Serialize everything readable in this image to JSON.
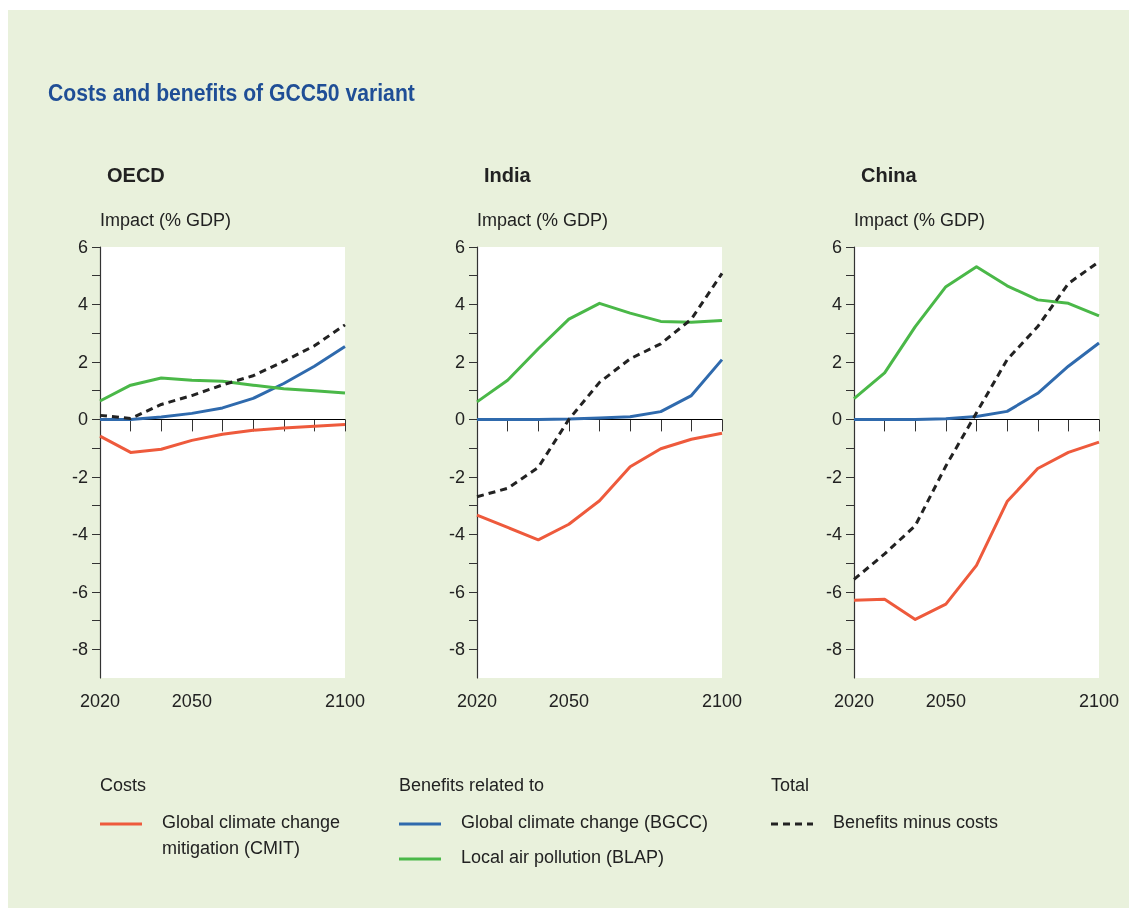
{
  "chart_data": [
    {
      "type": "line",
      "title": "OECD",
      "ylabel": "Impact (% GDP)",
      "annotations": [
        "Costs and benefits of GCC50 variant",
        "Costs",
        "Benefits related to",
        "Total"
      ],
      "legend": "bottom",
      "marker": "none",
      "x": [
        2020,
        2030,
        2040,
        2050,
        2060,
        2070,
        2080,
        2090,
        2100
      ],
      "xlim": [
        2020,
        2100
      ],
      "xticks": [
        2020,
        {
          "value": 2030,
          "label": null
        },
        {
          "value": 2040,
          "label": null
        },
        2050,
        {
          "value": 2060,
          "label": null
        },
        {
          "value": 2070,
          "label": null
        },
        {
          "value": 2080,
          "label": null
        },
        {
          "value": 2090,
          "label": null
        },
        2100
      ],
      "ylim": [
        -9,
        6
      ],
      "yticks": [
        -8,
        {
          "value": -7,
          "label": null
        },
        -6,
        {
          "value": -5,
          "label": null
        },
        -4,
        {
          "value": -3,
          "label": null
        },
        -2,
        {
          "value": -1,
          "label": null
        },
        0,
        {
          "value": 1,
          "label": null
        },
        2,
        {
          "value": 3,
          "label": null
        },
        4,
        {
          "value": 5,
          "label": null
        },
        6
      ],
      "ref_lines": [
        {
          "axis": "y",
          "value": 0,
          "color": "#000000"
        }
      ],
      "series": [
        {
          "name": "Global climate change mitigation (CMIT)",
          "color": "#ee5a3c",
          "values": [
            -0.58,
            -1.15,
            -1.04,
            -0.73,
            -0.52,
            -0.38,
            -0.3,
            -0.24,
            -0.18
          ]
        },
        {
          "name": "Global climate change (BGCC)",
          "color": "#2f6aad",
          "values": [
            0,
            0,
            0.08,
            0.21,
            0.4,
            0.73,
            1.25,
            1.85,
            2.54
          ]
        },
        {
          "name": "Local air pollution (BLAP)",
          "color": "#4ab848",
          "values": [
            0.64,
            1.19,
            1.44,
            1.36,
            1.33,
            1.19,
            1.07,
            1,
            0.92
          ]
        },
        {
          "name": "Benefits minus costs",
          "color": "#222222",
          "line_style": "dashed",
          "values": [
            0.14,
            0.03,
            0.52,
            0.83,
            1.2,
            1.52,
            2.02,
            2.56,
            3.29
          ]
        }
      ]
    },
    {
      "type": "line",
      "title": "India",
      "ylabel": "Impact (% GDP)",
      "marker": "none",
      "x": [
        2020,
        2030,
        2040,
        2050,
        2060,
        2070,
        2080,
        2090,
        2100
      ],
      "xlim": [
        2020,
        2100
      ],
      "xticks": [
        2020,
        {
          "value": 2030,
          "label": null
        },
        {
          "value": 2040,
          "label": null
        },
        2050,
        {
          "value": 2060,
          "label": null
        },
        {
          "value": 2070,
          "label": null
        },
        {
          "value": 2080,
          "label": null
        },
        {
          "value": 2090,
          "label": null
        },
        2100
      ],
      "ylim": [
        -9,
        6
      ],
      "yticks": [
        -8,
        {
          "value": -7,
          "label": null
        },
        -6,
        {
          "value": -5,
          "label": null
        },
        -4,
        {
          "value": -3,
          "label": null
        },
        -2,
        {
          "value": -1,
          "label": null
        },
        0,
        {
          "value": 1,
          "label": null
        },
        2,
        {
          "value": 3,
          "label": null
        },
        4,
        {
          "value": 5,
          "label": null
        },
        6
      ],
      "ref_lines": [
        {
          "axis": "y",
          "value": 0,
          "color": "#000000"
        }
      ],
      "series": [
        {
          "color": "#ee5a3c",
          "values": [
            -3.33,
            -3.76,
            -4.19,
            -3.65,
            -2.83,
            -1.65,
            -1.02,
            -0.69,
            -0.48
          ]
        },
        {
          "color": "#2f6aad",
          "values": [
            0,
            0,
            0,
            0.01,
            0.05,
            0.09,
            0.27,
            0.83,
            2.08
          ]
        },
        {
          "color": "#4ab848",
          "values": [
            0.61,
            1.36,
            2.46,
            3.49,
            4.04,
            3.7,
            3.41,
            3.38,
            3.44
          ]
        },
        {
          "color": "#222222",
          "line_style": "dashed",
          "values": [
            -2.69,
            -2.4,
            -1.67,
            0,
            1.29,
            2.11,
            2.63,
            3.49,
            5.08
          ]
        }
      ]
    },
    {
      "type": "line",
      "title": "China",
      "ylabel": "Impact (% GDP)",
      "marker": "none",
      "x": [
        2020,
        2030,
        2040,
        2050,
        2060,
        2070,
        2080,
        2090,
        2100
      ],
      "xlim": [
        2020,
        2100
      ],
      "xticks": [
        2020,
        {
          "value": 2030,
          "label": null
        },
        {
          "value": 2040,
          "label": null
        },
        2050,
        {
          "value": 2060,
          "label": null
        },
        {
          "value": 2070,
          "label": null
        },
        {
          "value": 2080,
          "label": null
        },
        {
          "value": 2090,
          "label": null
        },
        2100
      ],
      "ylim": [
        -9,
        6
      ],
      "yticks": [
        -8,
        {
          "value": -7,
          "label": null
        },
        -6,
        {
          "value": -5,
          "label": null
        },
        -4,
        {
          "value": -3,
          "label": null
        },
        -2,
        {
          "value": -1,
          "label": null
        },
        0,
        {
          "value": 1,
          "label": null
        },
        2,
        {
          "value": 3,
          "label": null
        },
        4,
        {
          "value": 5,
          "label": null
        },
        6
      ],
      "ref_lines": [
        {
          "axis": "y",
          "value": 0,
          "color": "#000000"
        }
      ],
      "series": [
        {
          "color": "#ee5a3c",
          "values": [
            -6.29,
            -6.26,
            -6.96,
            -6.43,
            -5.08,
            -2.86,
            -1.71,
            -1.15,
            -0.79
          ]
        },
        {
          "color": "#2f6aad",
          "values": [
            0,
            0,
            0,
            0.02,
            0.1,
            0.28,
            0.91,
            1.85,
            2.66
          ]
        },
        {
          "color": "#4ab848",
          "values": [
            0.72,
            1.62,
            3.23,
            4.62,
            5.31,
            4.65,
            4.16,
            4.04,
            3.6
          ]
        },
        {
          "color": "#222222",
          "line_style": "dashed",
          "values": [
            -5.57,
            -4.68,
            -3.7,
            -1.62,
            0.23,
            2.08,
            3.23,
            4.73,
            5.49
          ]
        }
      ]
    }
  ]
}
